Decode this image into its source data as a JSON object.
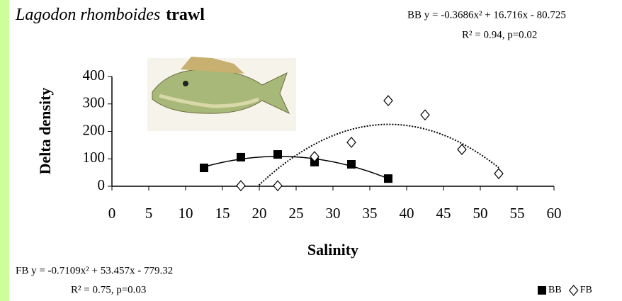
{
  "chart_data": {
    "type": "scatter",
    "title": "Lagodon rhomboides",
    "title_suffix": "trawl",
    "x_label": "Salinity",
    "y_label": "Delta density",
    "xlim": [
      0,
      60
    ],
    "xticks": [
      0,
      5,
      10,
      15,
      20,
      25,
      30,
      35,
      40,
      45,
      50,
      55,
      60
    ],
    "ylim": [
      0,
      400
    ],
    "yticks": [
      0,
      100,
      200,
      300,
      400
    ],
    "legend": "bottom-right",
    "series": [
      {
        "name": "BB",
        "color": "#000000",
        "marker": "square",
        "x": [
          12.5,
          17.5,
          22.5,
          27.5,
          32.5,
          37.5
        ],
        "values": [
          67,
          106,
          116,
          88,
          80,
          28
        ],
        "trendline": {
          "equation": "BB y = -0.3686x² + 16.716x - 80.725",
          "stats": "R² = 0.94, p=0.02",
          "a": -0.3686,
          "b": 16.716,
          "c": -80.725,
          "style": "solid"
        }
      },
      {
        "name": "FB",
        "color": "#000000",
        "marker": "diamond",
        "x": [
          17.5,
          22.5,
          27.5,
          32.5,
          37.5,
          42.5,
          47.5,
          52.5
        ],
        "values": [
          2,
          2,
          108,
          160,
          312,
          260,
          134,
          46
        ],
        "trendline": {
          "equation": "FB y = -0.7109x² + 53.457x - 779.32",
          "stats": "R² = 0.75, p=0.03",
          "a": -0.7109,
          "b": 53.457,
          "c": -779.32,
          "style": "dotted"
        }
      }
    ]
  }
}
